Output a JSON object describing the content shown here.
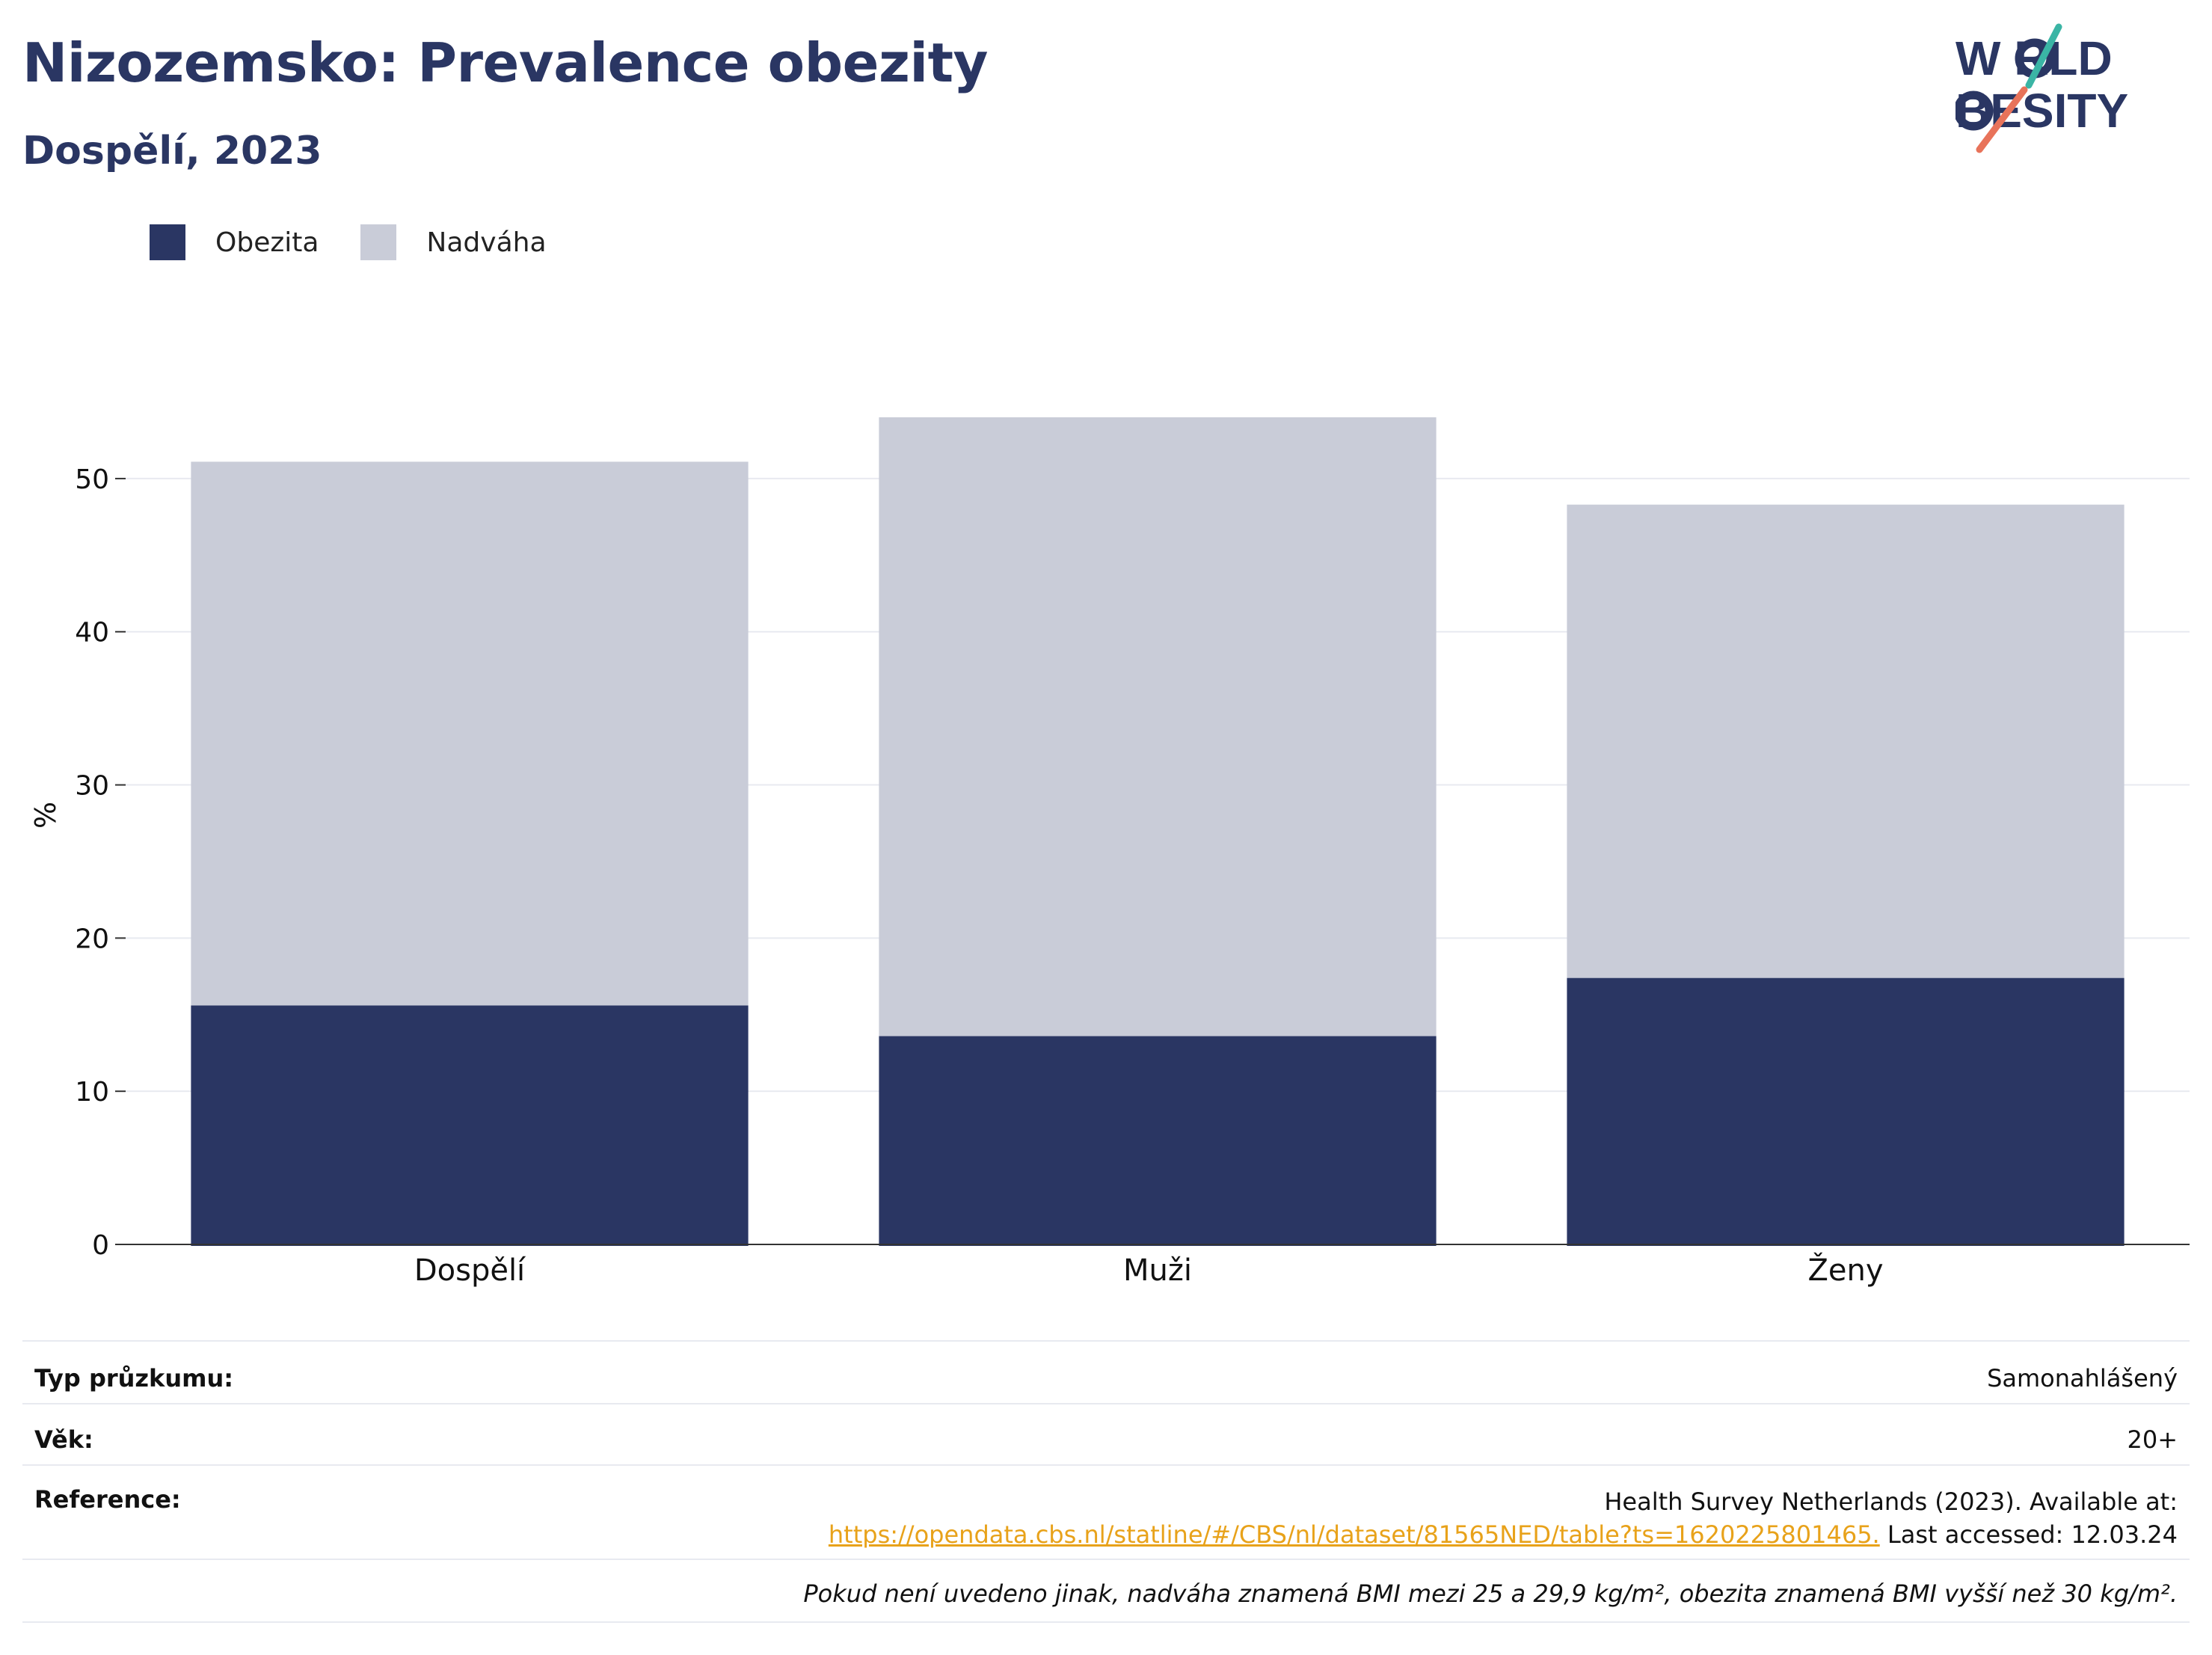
{
  "header": {
    "title": "Nizozemsko: Prevalence obezity",
    "subtitle": "Dospělí, 2023"
  },
  "logo": {
    "line1": "W RLD",
    "line2": "BESITY",
    "text": "WORLD OBESITY"
  },
  "colors": {
    "obesity": "#2a3663",
    "overweight": "#c9ccd8",
    "title": "#2a3663",
    "link": "#e8a21a",
    "logo_teal": "#3ab5a5",
    "logo_coral": "#e8735a"
  },
  "legend": [
    {
      "label": "Obezita",
      "color": "#2a3663"
    },
    {
      "label": "Nadváha",
      "color": "#c9ccd8"
    }
  ],
  "chart_data": {
    "type": "bar",
    "stacked": true,
    "categories": [
      "Dospělí",
      "Muži",
      "Ženy"
    ],
    "series": [
      {
        "name": "Obezita",
        "values": [
          15.6,
          13.6,
          17.4
        ]
      },
      {
        "name": "Nadváha",
        "values": [
          35.5,
          40.4,
          30.9
        ]
      }
    ],
    "title": "",
    "xlabel": "",
    "ylabel": "%",
    "ylim": [
      0,
      54
    ],
    "yticks": [
      0,
      10,
      20,
      30,
      40,
      50
    ],
    "grid": true,
    "legend_position": "top-left"
  },
  "info": {
    "survey_type_label": "Typ průzkumu:",
    "survey_type_value": "Samonahlášený",
    "age_label": "Věk:",
    "age_value": "20+",
    "reference_label": "Reference:",
    "reference_line1": "Health Survey Netherlands (2023). Available at:",
    "reference_link": "https://opendata.cbs.nl/statline/#/CBS/nl/dataset/81565NED/table?ts=1620225801465.",
    "reference_accessed": " Last accessed: 12.03.24",
    "note": "Pokud není uvedeno jinak, nadváha znamená BMI mezi 25 a 29,9 kg/m², obezita znamená BMI vyšší než 30 kg/m²."
  }
}
